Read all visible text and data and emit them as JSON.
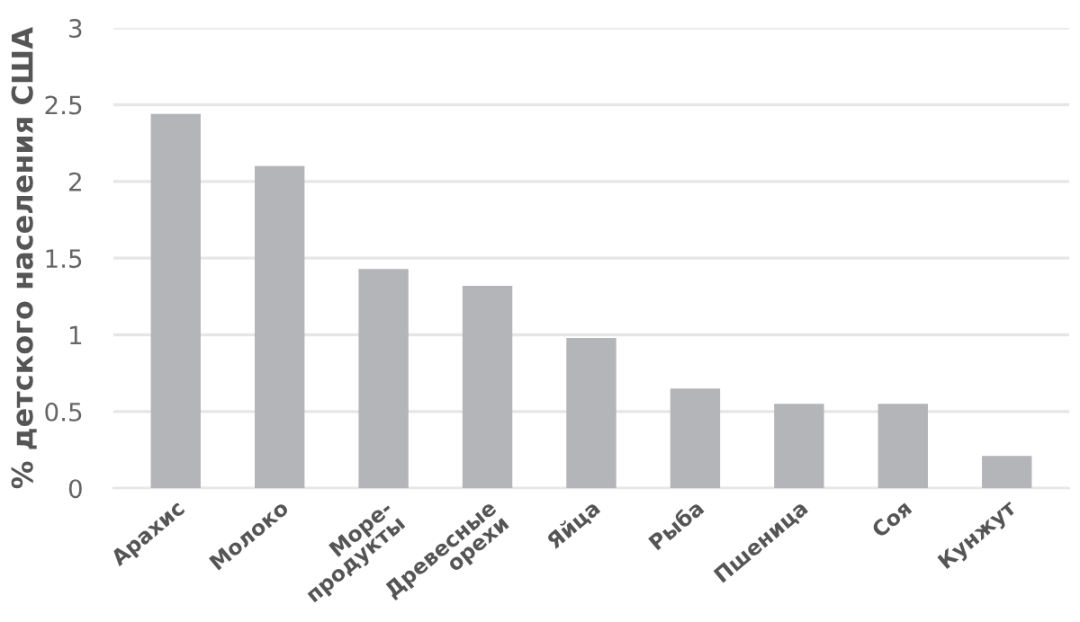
{
  "chart_data": {
    "type": "bar",
    "ylabel": "% детского населения США",
    "categories": [
      "Арахис",
      "Молоко",
      "Море-\nпродукты",
      "Древесные\nорехи",
      "Яйца",
      "Рыба",
      "Пшеница",
      "Соя",
      "Кунжут"
    ],
    "values": [
      2.44,
      2.1,
      1.43,
      1.32,
      0.98,
      0.65,
      0.55,
      0.55,
      0.21
    ],
    "color": "#b4b5b8",
    "ylim": [
      0,
      3
    ],
    "yticks": [
      0,
      0.5,
      1,
      1.5,
      2,
      2.5,
      3
    ],
    "grid": "y"
  }
}
